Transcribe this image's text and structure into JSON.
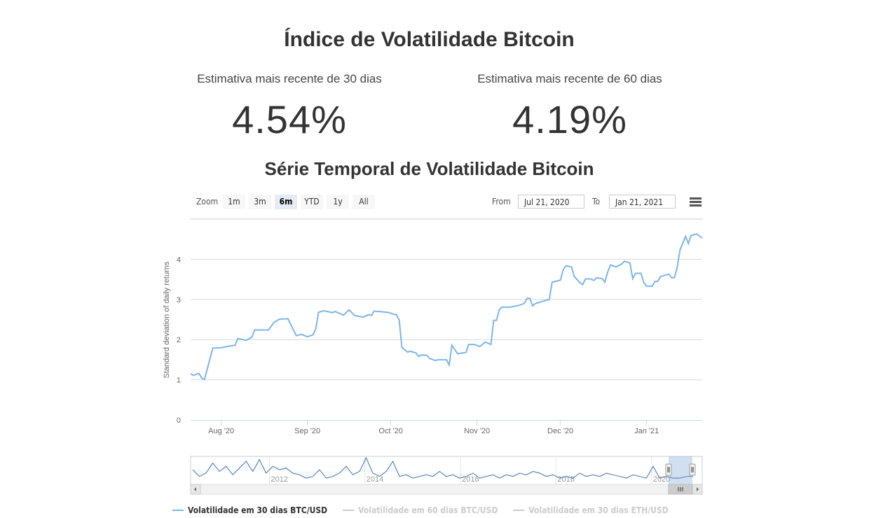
{
  "header": {
    "title": "Índice de Volatilidade Bitcoin"
  },
  "stats": [
    {
      "label": "Estimativa mais recente de 30 dias",
      "value": "4.54%"
    },
    {
      "label": "Estimativa mais recente de 60 dias",
      "value": "4.19%"
    }
  ],
  "chart_data": {
    "type": "line",
    "title": "Série Temporal de Volatilidade Bitcoin",
    "ylabel": "Standard deviation of daily returns",
    "xlabel": "",
    "ylim": [
      0,
      5
    ],
    "yticks": [
      "0",
      "1",
      "2",
      "3",
      "4"
    ],
    "xlim": [
      "2020-07-21",
      "2021-01-21"
    ],
    "xticks": [
      {
        "date": "2020-08-01",
        "label": "Aug '20"
      },
      {
        "date": "2020-09-01",
        "label": "Sep '20"
      },
      {
        "date": "2020-10-01",
        "label": "Oct '20"
      },
      {
        "date": "2020-11-01",
        "label": "Nov '20"
      },
      {
        "date": "2020-12-01",
        "label": "Dec '20"
      },
      {
        "date": "2021-01-01",
        "label": "Jan '21"
      }
    ],
    "grid": true,
    "color": "#7cb5ec",
    "series": [
      {
        "name": "Volatilidade em 30 dias BTC/USD",
        "visible": true,
        "points": [
          [
            "2020-07-21",
            1.15
          ],
          [
            "2020-07-22",
            1.11
          ],
          [
            "2020-07-24",
            1.16
          ],
          [
            "2020-07-25",
            1.04
          ],
          [
            "2020-07-26",
            1.01
          ],
          [
            "2020-07-29",
            1.79
          ],
          [
            "2020-08-01",
            1.8
          ],
          [
            "2020-08-04",
            1.84
          ],
          [
            "2020-08-06",
            1.86
          ],
          [
            "2020-08-07",
            2.03
          ],
          [
            "2020-08-10",
            1.98
          ],
          [
            "2020-08-12",
            2.06
          ],
          [
            "2020-08-13",
            2.24
          ],
          [
            "2020-08-18",
            2.24
          ],
          [
            "2020-08-20",
            2.43
          ],
          [
            "2020-08-22",
            2.51
          ],
          [
            "2020-08-25",
            2.52
          ],
          [
            "2020-08-26",
            2.38
          ],
          [
            "2020-08-28",
            2.1
          ],
          [
            "2020-08-30",
            2.13
          ],
          [
            "2020-09-01",
            2.07
          ],
          [
            "2020-09-03",
            2.12
          ],
          [
            "2020-09-04",
            2.26
          ],
          [
            "2020-09-05",
            2.68
          ],
          [
            "2020-09-07",
            2.72
          ],
          [
            "2020-09-10",
            2.67
          ],
          [
            "2020-09-11",
            2.7
          ],
          [
            "2020-09-14",
            2.61
          ],
          [
            "2020-09-16",
            2.74
          ],
          [
            "2020-09-18",
            2.6
          ],
          [
            "2020-09-21",
            2.56
          ],
          [
            "2020-09-23",
            2.62
          ],
          [
            "2020-09-24",
            2.6
          ],
          [
            "2020-09-25",
            2.71
          ],
          [
            "2020-09-30",
            2.68
          ],
          [
            "2020-10-02",
            2.63
          ],
          [
            "2020-10-03",
            2.62
          ],
          [
            "2020-10-04",
            2.49
          ],
          [
            "2020-10-05",
            1.81
          ],
          [
            "2020-10-07",
            1.69
          ],
          [
            "2020-10-08",
            1.71
          ],
          [
            "2020-10-10",
            1.67
          ],
          [
            "2020-10-11",
            1.58
          ],
          [
            "2020-10-12",
            1.62
          ],
          [
            "2020-10-14",
            1.61
          ],
          [
            "2020-10-15",
            1.53
          ],
          [
            "2020-10-17",
            1.48
          ],
          [
            "2020-10-18",
            1.5
          ],
          [
            "2020-10-21",
            1.5
          ],
          [
            "2020-10-22",
            1.37
          ],
          [
            "2020-10-23",
            1.86
          ],
          [
            "2020-10-25",
            1.65
          ],
          [
            "2020-10-28",
            1.68
          ],
          [
            "2020-10-29",
            1.88
          ],
          [
            "2020-10-31",
            1.88
          ],
          [
            "2020-11-02",
            1.83
          ],
          [
            "2020-11-04",
            1.94
          ],
          [
            "2020-11-06",
            1.88
          ],
          [
            "2020-11-07",
            2.48
          ],
          [
            "2020-11-08",
            2.48
          ],
          [
            "2020-11-09",
            2.74
          ],
          [
            "2020-11-10",
            2.81
          ],
          [
            "2020-11-13",
            2.81
          ],
          [
            "2020-11-16",
            2.85
          ],
          [
            "2020-11-18",
            2.9
          ],
          [
            "2020-11-19",
            3.03
          ],
          [
            "2020-11-20",
            3.03
          ],
          [
            "2020-11-21",
            2.84
          ],
          [
            "2020-11-22",
            2.9
          ],
          [
            "2020-11-24",
            2.94
          ],
          [
            "2020-11-27",
            3.0
          ],
          [
            "2020-11-28",
            3.43
          ],
          [
            "2020-12-01",
            3.48
          ],
          [
            "2020-12-02",
            3.74
          ],
          [
            "2020-12-03",
            3.84
          ],
          [
            "2020-12-05",
            3.81
          ],
          [
            "2020-12-06",
            3.57
          ],
          [
            "2020-12-08",
            3.42
          ],
          [
            "2020-12-09",
            3.37
          ],
          [
            "2020-12-10",
            3.51
          ],
          [
            "2020-12-12",
            3.51
          ],
          [
            "2020-12-13",
            3.47
          ],
          [
            "2020-12-14",
            3.54
          ],
          [
            "2020-12-16",
            3.52
          ],
          [
            "2020-12-17",
            3.43
          ],
          [
            "2020-12-18",
            3.68
          ],
          [
            "2020-12-19",
            3.86
          ],
          [
            "2020-12-21",
            3.81
          ],
          [
            "2020-12-23",
            3.88
          ],
          [
            "2020-12-24",
            3.95
          ],
          [
            "2020-12-26",
            3.91
          ],
          [
            "2020-12-27",
            3.52
          ],
          [
            "2020-12-28",
            3.65
          ],
          [
            "2020-12-30",
            3.65
          ],
          [
            "2020-12-31",
            3.42
          ],
          [
            "2021-01-01",
            3.33
          ],
          [
            "2021-01-03",
            3.33
          ],
          [
            "2021-01-04",
            3.45
          ],
          [
            "2021-01-05",
            3.45
          ],
          [
            "2021-01-06",
            3.57
          ],
          [
            "2021-01-09",
            3.63
          ],
          [
            "2021-01-10",
            3.54
          ],
          [
            "2021-01-11",
            3.54
          ],
          [
            "2021-01-12",
            3.8
          ],
          [
            "2021-01-13",
            4.23
          ],
          [
            "2021-01-15",
            4.57
          ],
          [
            "2021-01-16",
            4.39
          ],
          [
            "2021-01-17",
            4.59
          ],
          [
            "2021-01-19",
            4.63
          ],
          [
            "2021-01-21",
            4.53
          ]
        ]
      },
      {
        "name": "Volatilidade em 60 dias BTC/USD",
        "visible": false
      },
      {
        "name": "Volatilidade em 30 dias ETH/USD",
        "visible": false
      }
    ],
    "navigator": {
      "xlim": [
        2010.35,
        2021.06
      ],
      "xticks": [
        "2012",
        "2014",
        "2016",
        "2018",
        "2020"
      ],
      "selected_range": [
        "2020-07-21",
        "2021-01-21"
      ],
      "values": [
        7,
        3,
        5,
        11,
        6,
        9,
        4,
        8,
        12,
        6,
        13,
        5,
        9,
        7,
        8,
        5,
        4,
        2,
        3,
        7,
        2,
        3,
        5,
        9,
        4,
        6,
        14,
        5,
        3,
        6,
        12,
        3,
        4,
        2,
        3,
        4,
        3,
        6,
        3,
        4,
        2,
        3,
        5,
        2,
        3,
        4,
        2,
        4,
        3,
        5,
        4,
        6,
        5,
        3,
        4,
        2,
        3,
        2,
        5,
        3,
        4,
        3,
        5,
        4,
        3,
        2,
        4,
        3,
        2,
        9,
        2,
        3,
        2,
        2,
        3,
        3
      ]
    }
  },
  "range_selector": {
    "zoom_label": "Zoom",
    "buttons": [
      "1m",
      "3m",
      "6m",
      "YTD",
      "1y",
      "All"
    ],
    "selected": "6m",
    "from_label": "From",
    "from_value": "Jul 21, 2020",
    "to_label": "To",
    "to_value": "Jan 21, 2021"
  },
  "icons": {
    "menu": "hamburger-menu-icon",
    "scroll_left": "arrow-left-icon",
    "scroll_right": "arrow-right-icon",
    "grip": "grip-icon"
  }
}
